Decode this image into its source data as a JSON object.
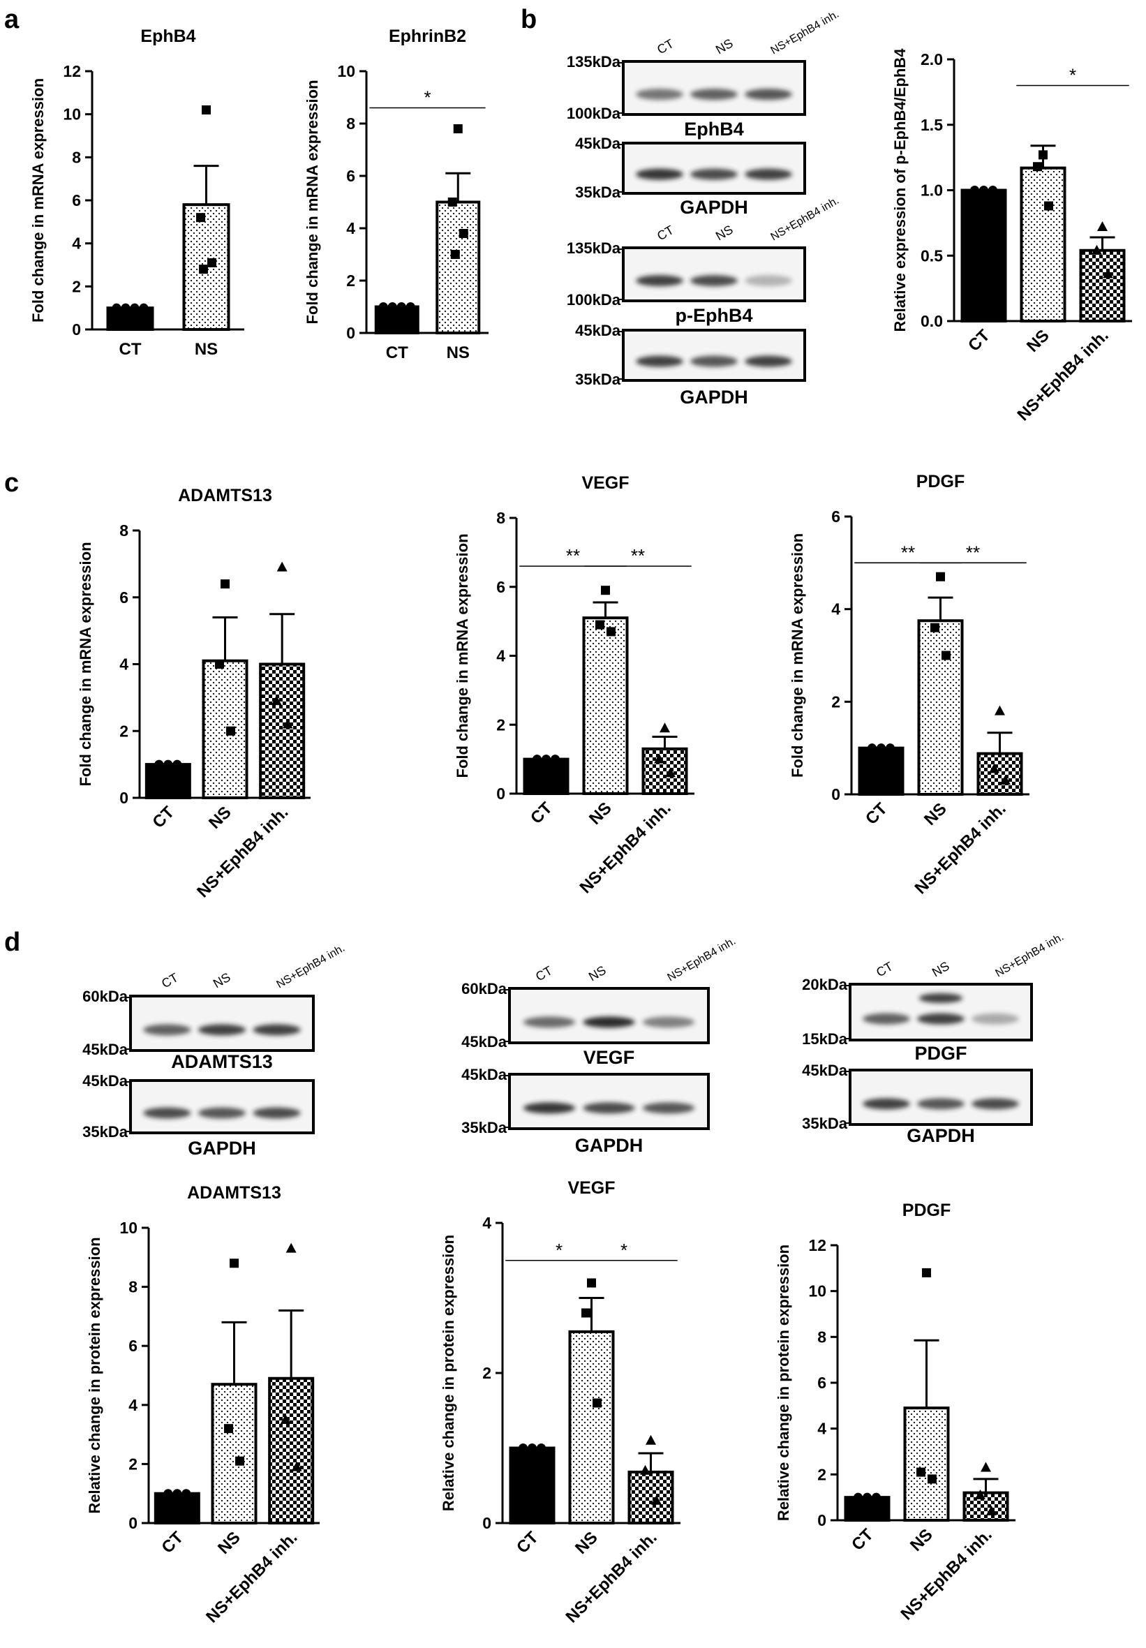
{
  "panel_letters": [
    "a",
    "b",
    "c",
    "d"
  ],
  "colors": {
    "ink": "#000000",
    "band": "#2b2b2b",
    "bg": "#ffffff"
  },
  "chart_data": [
    {
      "id": "a1",
      "type": "bar",
      "title": "EphB4",
      "ylabel": "Fold change in mRNA expression",
      "xlabel": "",
      "categories": [
        "CT",
        "NS"
      ],
      "values": [
        1.0,
        5.8
      ],
      "errors": [
        0.0,
        1.8
      ],
      "points": [
        [
          1,
          1,
          1,
          1
        ],
        [
          10.2,
          5.2,
          3.1,
          2.8
        ]
      ],
      "ylim": [
        0,
        12
      ],
      "yticks": [
        0,
        2,
        4,
        6,
        8,
        10,
        12
      ],
      "sig": [],
      "rotate_labels": false
    },
    {
      "id": "a2",
      "type": "bar",
      "title": "EphrinB2",
      "ylabel": "Fold change in mRNA expression",
      "xlabel": "",
      "categories": [
        "CT",
        "NS"
      ],
      "values": [
        1.0,
        5.0
      ],
      "errors": [
        0.0,
        1.1
      ],
      "points": [
        [
          1,
          1,
          1,
          1
        ],
        [
          7.8,
          5.0,
          3.8,
          3.0
        ]
      ],
      "ylim": [
        0,
        10
      ],
      "yticks": [
        0,
        2,
        4,
        6,
        8,
        10
      ],
      "sig": [
        {
          "from": 0,
          "to": 1,
          "label": "*",
          "y": 8.6
        }
      ],
      "rotate_labels": false
    },
    {
      "id": "b_chart",
      "type": "bar",
      "title": "",
      "ylabel": "Relative expression of p-EphB4/EphB4",
      "xlabel": "",
      "categories": [
        "CT",
        "NS",
        "NS+EphB4 inh."
      ],
      "values": [
        1.0,
        1.17,
        0.54
      ],
      "errors": [
        0.0,
        0.17,
        0.1
      ],
      "points": [
        [
          1,
          1,
          1
        ],
        [
          1.27,
          1.18,
          0.88
        ],
        [
          0.72,
          0.54,
          0.36
        ]
      ],
      "ylim": [
        0,
        2.0
      ],
      "yticks": [
        0,
        0.5,
        1.0,
        1.5,
        2.0
      ],
      "sig": [
        {
          "from": 1,
          "to": 2,
          "label": "*",
          "y": 1.8
        }
      ],
      "rotate_labels": true
    },
    {
      "id": "c1",
      "type": "bar",
      "title": "ADAMTS13",
      "ylabel": "Fold change in mRNA expression",
      "xlabel": "",
      "categories": [
        "CT",
        "NS",
        "NS+EphB4 inh."
      ],
      "values": [
        1.0,
        4.1,
        4.0
      ],
      "errors": [
        0.0,
        1.3,
        1.5
      ],
      "points": [
        [
          1,
          1,
          1
        ],
        [
          6.4,
          4.0,
          2.0
        ],
        [
          6.9,
          2.9,
          2.2
        ]
      ],
      "ylim": [
        0,
        8
      ],
      "yticks": [
        0,
        2,
        4,
        6,
        8
      ],
      "sig": [],
      "rotate_labels": true
    },
    {
      "id": "c2",
      "type": "bar",
      "title": "VEGF",
      "ylabel": "Fold change in mRNA expression",
      "xlabel": "",
      "categories": [
        "CT",
        "NS",
        "NS+EphB4 inh."
      ],
      "values": [
        1.0,
        5.1,
        1.3
      ],
      "errors": [
        0.0,
        0.45,
        0.35
      ],
      "points": [
        [
          1,
          1,
          1
        ],
        [
          5.9,
          4.9,
          4.7
        ],
        [
          1.9,
          1.0,
          0.6
        ]
      ],
      "ylim": [
        0,
        8
      ],
      "yticks": [
        0,
        2,
        4,
        6,
        8
      ],
      "sig": [
        {
          "from": 0,
          "to": 1,
          "label": "**",
          "y": 6.6
        },
        {
          "from": 1,
          "to": 2,
          "label": "**",
          "y": 6.6
        }
      ],
      "rotate_labels": true
    },
    {
      "id": "c3",
      "type": "bar",
      "title": "PDGF",
      "ylabel": "Fold change in mRNA expression",
      "xlabel": "",
      "categories": [
        "CT",
        "NS",
        "NS+EphB4 inh."
      ],
      "values": [
        1.0,
        3.75,
        0.88
      ],
      "errors": [
        0.0,
        0.5,
        0.45
      ],
      "points": [
        [
          1,
          1,
          1
        ],
        [
          4.7,
          3.6,
          3.0
        ],
        [
          1.8,
          0.55,
          0.3
        ]
      ],
      "ylim": [
        0,
        6
      ],
      "yticks": [
        0,
        2,
        4,
        6
      ],
      "sig": [
        {
          "from": 0,
          "to": 1,
          "label": "**",
          "y": 5.0
        },
        {
          "from": 1,
          "to": 2,
          "label": "**",
          "y": 5.0
        }
      ],
      "rotate_labels": true
    },
    {
      "id": "d1",
      "type": "bar",
      "title": "ADAMTS13",
      "ylabel": "Relative change in protein expression",
      "xlabel": "",
      "categories": [
        "CT",
        "NS",
        "NS+EphB4 inh."
      ],
      "values": [
        1.0,
        4.7,
        4.9
      ],
      "errors": [
        0.0,
        2.1,
        2.3
      ],
      "points": [
        [
          1,
          1,
          1
        ],
        [
          8.8,
          3.2,
          2.1
        ],
        [
          9.3,
          3.5,
          1.9
        ]
      ],
      "ylim": [
        0,
        10
      ],
      "yticks": [
        0,
        2,
        4,
        6,
        8,
        10
      ],
      "sig": [],
      "rotate_labels": true
    },
    {
      "id": "d2",
      "type": "bar",
      "title": "VEGF",
      "ylabel": "Relative change in protein expression",
      "xlabel": "",
      "categories": [
        "CT",
        "NS",
        "NS+EphB4 inh."
      ],
      "values": [
        1.0,
        2.55,
        0.68
      ],
      "errors": [
        0.0,
        0.45,
        0.25
      ],
      "points": [
        [
          1,
          1,
          1
        ],
        [
          3.2,
          2.8,
          1.6
        ],
        [
          1.1,
          0.7,
          0.3
        ]
      ],
      "ylim": [
        0,
        4
      ],
      "yticks": [
        0,
        2,
        4
      ],
      "sig": [
        {
          "from": 0,
          "to": 1,
          "label": "*",
          "y": 3.5
        },
        {
          "from": 1,
          "to": 2,
          "label": "*",
          "y": 3.5
        }
      ],
      "rotate_labels": true
    },
    {
      "id": "d3",
      "type": "bar",
      "title": "PDGF",
      "ylabel": "Relative change in protein expression",
      "xlabel": "",
      "categories": [
        "CT",
        "NS",
        "NS+EphB4 inh."
      ],
      "values": [
        1.0,
        4.9,
        1.2
      ],
      "errors": [
        0.0,
        2.95,
        0.6
      ],
      "points": [
        [
          1,
          1,
          1
        ],
        [
          10.8,
          2.1,
          1.8
        ],
        [
          2.3,
          1.1,
          0.4
        ]
      ],
      "ylim": [
        0,
        12
      ],
      "yticks": [
        0,
        2,
        4,
        6,
        8,
        10,
        12
      ],
      "sig": [],
      "rotate_labels": true
    }
  ],
  "blots": [
    {
      "id": "b_ephb4",
      "lanes": [
        "CT",
        "NS",
        "NS+EphB4 inh."
      ],
      "mw_top": "135kDa",
      "mw_bottom": "100kDa",
      "label": "EphB4",
      "intensity": [
        0.6,
        0.7,
        0.75
      ],
      "double": false
    },
    {
      "id": "b_gapdh1",
      "lanes": [],
      "mw_top": "45kDa",
      "mw_bottom": "35kDa",
      "label": "GAPDH",
      "intensity": [
        0.9,
        0.8,
        0.85
      ],
      "double": false
    },
    {
      "id": "b_pephb4",
      "lanes": [
        "CT",
        "NS",
        "NS+EphB4 inh."
      ],
      "mw_top": "135kDa",
      "mw_bottom": "100kDa",
      "label": "p-EphB4",
      "intensity": [
        0.85,
        0.8,
        0.3
      ],
      "double": false
    },
    {
      "id": "b_gapdh2",
      "lanes": [],
      "mw_top": "45kDa",
      "mw_bottom": "35kDa",
      "label": "GAPDH",
      "intensity": [
        0.85,
        0.75,
        0.85
      ],
      "double": false
    },
    {
      "id": "d_adamts13",
      "lanes": [
        "CT",
        "NS",
        "NS+EphB4 inh."
      ],
      "mw_top": "60kDa",
      "mw_bottom": "45kDa",
      "label": "ADAMTS13",
      "intensity": [
        0.7,
        0.85,
        0.85
      ],
      "double": false
    },
    {
      "id": "d_gapdh1",
      "lanes": [],
      "mw_top": "45kDa",
      "mw_bottom": "35kDa",
      "label": "GAPDH",
      "intensity": [
        0.8,
        0.75,
        0.8
      ],
      "double": false
    },
    {
      "id": "d_vegf",
      "lanes": [
        "CT",
        "NS",
        "NS+EphB4 inh."
      ],
      "mw_top": "60kDa",
      "mw_bottom": "45kDa",
      "label": "VEGF",
      "intensity": [
        0.65,
        0.95,
        0.55
      ],
      "double": false
    },
    {
      "id": "d_gapdh2",
      "lanes": [],
      "mw_top": "45kDa",
      "mw_bottom": "35kDa",
      "label": "GAPDH",
      "intensity": [
        0.9,
        0.8,
        0.75
      ],
      "double": false
    },
    {
      "id": "d_pdgf",
      "lanes": [
        "CT",
        "NS",
        "NS+EphB4 inh."
      ],
      "mw_top": "20kDa",
      "mw_bottom": "15kDa",
      "label": "PDGF",
      "intensity": [
        0.7,
        0.85,
        0.35
      ],
      "double": true
    },
    {
      "id": "d_gapdh3",
      "lanes": [],
      "mw_top": "45kDa",
      "mw_bottom": "35kDa",
      "label": "GAPDH",
      "intensity": [
        0.85,
        0.75,
        0.8
      ],
      "double": false
    }
  ]
}
